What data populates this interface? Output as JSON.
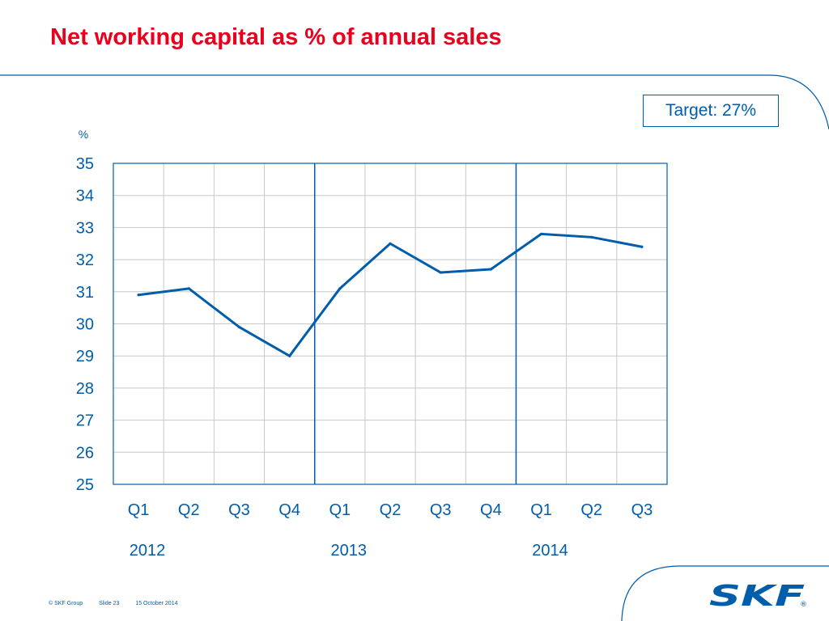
{
  "slide": {
    "title": "Net working capital as % of annual sales",
    "target_label": "Target: 27%",
    "footer": {
      "copyright": "© SKF Group",
      "slide_number": "Slide 23",
      "date": "15 October 2014"
    },
    "logo": {
      "icon": "skf-logo",
      "text": "SKF"
    },
    "colors": {
      "title": "#e8001c",
      "brand_blue": "#005dab",
      "grid": "#c8c8c8"
    }
  },
  "chart_data": {
    "type": "line",
    "title": "",
    "ylabel": "%",
    "ylim": [
      25,
      35
    ],
    "yticks": [
      25,
      26,
      27,
      28,
      29,
      30,
      31,
      32,
      33,
      34,
      35
    ],
    "categories": [
      "Q1",
      "Q2",
      "Q3",
      "Q4",
      "Q1",
      "Q2",
      "Q3",
      "Q4",
      "Q1",
      "Q2",
      "Q3"
    ],
    "year_groups": [
      {
        "label": "2012",
        "start": 0,
        "count": 4
      },
      {
        "label": "2013",
        "start": 4,
        "count": 4
      },
      {
        "label": "2014",
        "start": 8,
        "count": 3
      }
    ],
    "series": [
      {
        "values": [
          30.9,
          31.1,
          29.9,
          29.0,
          31.1,
          32.5,
          31.6,
          31.7,
          32.8,
          32.7,
          32.4
        ]
      }
    ],
    "grid": true,
    "legend": "none"
  }
}
